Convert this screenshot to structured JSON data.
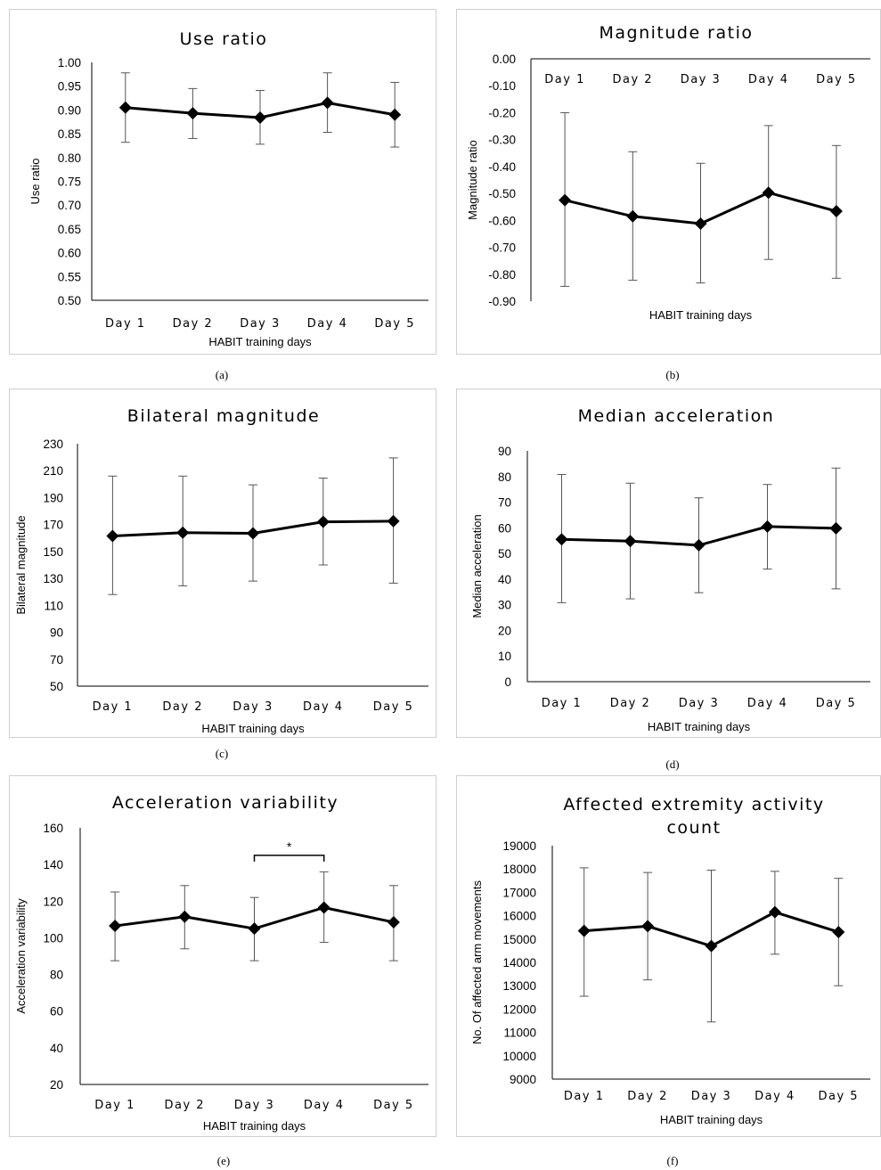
{
  "chart_data": [
    {
      "id": "a",
      "type": "line",
      "title": "Use ratio",
      "xlabel": "HABIT training days",
      "ylabel": "Use ratio",
      "categories": [
        "Day 1",
        "Day 2",
        "Day 3",
        "Day 4",
        "Day 5"
      ],
      "values": [
        0.905,
        0.893,
        0.884,
        0.915,
        0.89
      ],
      "error_low": [
        0.832,
        0.84,
        0.828,
        0.853,
        0.822
      ],
      "error_high": [
        0.978,
        0.945,
        0.941,
        0.978,
        0.958
      ],
      "ylim": [
        0.5,
        1.0
      ],
      "yticks": [
        "1.00",
        "0.95",
        "0.90",
        "0.85",
        "0.80",
        "0.75",
        "0.70",
        "0.65",
        "0.60",
        "0.55",
        "0.50"
      ],
      "ytick_values": [
        1.0,
        0.95,
        0.9,
        0.85,
        0.8,
        0.75,
        0.7,
        0.65,
        0.6,
        0.55,
        0.5
      ],
      "grid": false,
      "caption": "(a)"
    },
    {
      "id": "b",
      "type": "line",
      "title": "Magnitude ratio",
      "xlabel": "HABIT training days",
      "ylabel": "Magnitude ratio",
      "categories": [
        "Day 1",
        "Day 2",
        "Day 3",
        "Day 4",
        "Day 5"
      ],
      "values": [
        -0.525,
        -0.585,
        -0.612,
        -0.497,
        -0.566
      ],
      "error_low": [
        -0.845,
        -0.822,
        -0.832,
        -0.745,
        -0.815
      ],
      "error_high": [
        -0.2,
        -0.345,
        -0.388,
        -0.248,
        -0.322
      ],
      "ylim": [
        -0.9,
        0.0
      ],
      "yticks": [
        "0.00",
        "-0.10",
        "-0.20",
        "-0.30",
        "-0.40",
        "-0.50",
        "-0.60",
        "-0.70",
        "-0.80",
        "-0.90"
      ],
      "ytick_values": [
        0,
        -0.1,
        -0.2,
        -0.3,
        -0.4,
        -0.5,
        -0.6,
        -0.7,
        -0.8,
        -0.9
      ],
      "xaxis_at_top": true,
      "grid": false,
      "caption": "(b)"
    },
    {
      "id": "c",
      "type": "line",
      "title": "Bilateral magnitude",
      "xlabel": "HABIT training days",
      "ylabel": "Bilateral magnitude",
      "categories": [
        "Day 1",
        "Day 2",
        "Day 3",
        "Day 4",
        "Day 5"
      ],
      "values": [
        161.5,
        164,
        163.5,
        172,
        172.5
      ],
      "error_low": [
        118,
        124.5,
        128,
        140,
        126.5
      ],
      "error_high": [
        206,
        206,
        199.5,
        204.5,
        219.5
      ],
      "ylim": [
        50,
        230
      ],
      "yticks": [
        "230",
        "210",
        "190",
        "170",
        "150",
        "130",
        "110",
        "90",
        "70",
        "50"
      ],
      "ytick_values": [
        230,
        210,
        190,
        170,
        150,
        130,
        110,
        90,
        70,
        50
      ],
      "grid": false,
      "caption": "(c)"
    },
    {
      "id": "d",
      "type": "line",
      "title": "Median acceleration",
      "xlabel": "HABIT training days",
      "ylabel": "Median acceleration",
      "categories": [
        "Day 1",
        "Day 2",
        "Day 3",
        "Day 4",
        "Day 5"
      ],
      "values": [
        55.5,
        54.8,
        53.2,
        60.5,
        59.8
      ],
      "error_low": [
        30.8,
        32.3,
        34.7,
        43.9,
        36.2
      ],
      "error_high": [
        80.8,
        77.4,
        71.7,
        76.9,
        83.3
      ],
      "ylim": [
        0,
        90
      ],
      "yticks": [
        "90",
        "80",
        "70",
        "60",
        "50",
        "40",
        "30",
        "20",
        "10",
        "0"
      ],
      "ytick_values": [
        90,
        80,
        70,
        60,
        50,
        40,
        30,
        20,
        10,
        0
      ],
      "grid": false,
      "caption": "(d)"
    },
    {
      "id": "e",
      "type": "line",
      "title": "Acceleration variability",
      "xlabel": "HABIT training days",
      "ylabel": "Acceleration variability",
      "categories": [
        "Day 1",
        "Day 2",
        "Day 3",
        "Day 4",
        "Day 5"
      ],
      "values": [
        106.5,
        111.5,
        105,
        116.5,
        108.5
      ],
      "error_low": [
        87.5,
        94,
        87.5,
        97.5,
        87.5
      ],
      "error_high": [
        125,
        128.5,
        122,
        136,
        128.5
      ],
      "ylim": [
        20,
        160
      ],
      "yticks": [
        "160",
        "140",
        "120",
        "100",
        "80",
        "60",
        "40",
        "20"
      ],
      "ytick_values": [
        160,
        140,
        120,
        100,
        80,
        60,
        40,
        20
      ],
      "significance": {
        "from": "Day 3",
        "to": "Day 4",
        "label": "*",
        "y": 145
      },
      "grid": false,
      "caption": "(e)"
    },
    {
      "id": "f",
      "type": "line",
      "title": "Affected extremity activity count",
      "title_lines": [
        "Affected extremity activity",
        "count"
      ],
      "xlabel": "HABIT training days",
      "ylabel": "No. Of affected arm movements",
      "categories": [
        "Day 1",
        "Day 2",
        "Day 3",
        "Day 4",
        "Day 5"
      ],
      "values": [
        15350,
        15550,
        14700,
        16150,
        15300
      ],
      "error_low": [
        12550,
        13250,
        11450,
        14350,
        13000
      ],
      "error_high": [
        18050,
        17850,
        17950,
        17900,
        17600
      ],
      "ylim": [
        9000,
        19000
      ],
      "yticks": [
        "19000",
        "18000",
        "17000",
        "16000",
        "15000",
        "14000",
        "13000",
        "12000",
        "11000",
        "10000",
        "9000"
      ],
      "ytick_values": [
        19000,
        18000,
        17000,
        16000,
        15000,
        14000,
        13000,
        12000,
        11000,
        10000,
        9000
      ],
      "grid": false,
      "caption": "(f)"
    }
  ]
}
